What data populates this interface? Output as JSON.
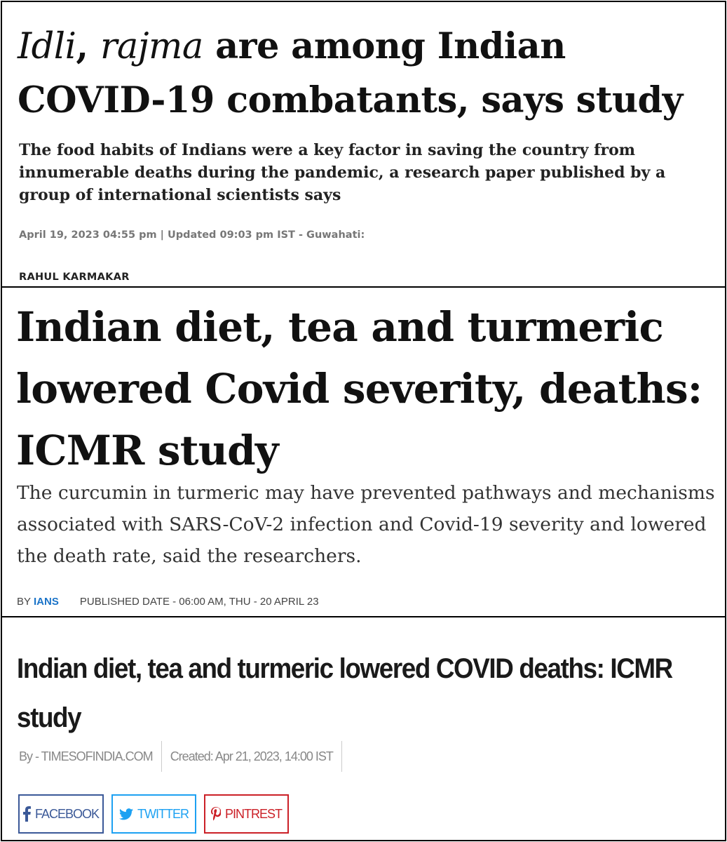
{
  "articles": [
    {
      "headline_italic_1": "Idli",
      "headline_sep": ", ",
      "headline_italic_2": "rajma",
      "headline_rest": " are among Indian COVID-19 combatants, says study",
      "subheadline": "The food habits of Indians were a key factor in saving the country from innumerable deaths during the pandemic, a research paper published by a group of international scientists says",
      "meta": "April 19, 2023 04:55 pm | Updated 09:03 pm IST - Guwahati:",
      "author": "RAHUL KARMAKAR"
    },
    {
      "headline": "Indian diet, tea and turmeric lowered Covid severity, deaths: ICMR study",
      "subheadline": "The curcumin in turmeric may have prevented pathways and mechanisms associated with SARS-CoV-2 infection and Covid-19 severity and lowered the death rate, said the researchers.",
      "by_label": "BY",
      "author": "IANS",
      "published": "PUBLISHED DATE - 06:00 AM, THU - 20 APRIL 23"
    },
    {
      "headline": "Indian diet, tea and turmeric lowered COVID deaths: ICMR study",
      "byline": "By - TIMESOFINDIA.COM",
      "created": "Created: Apr 21, 2023, 14:00 IST",
      "share": [
        {
          "label": "FACEBOOK",
          "icon": "facebook-icon",
          "color": "#3b5998"
        },
        {
          "label": "TWITTER",
          "icon": "twitter-icon",
          "color": "#1da1f2"
        },
        {
          "label": "PINTREST",
          "icon": "pinterest-icon",
          "color": "#cb2027"
        }
      ]
    }
  ]
}
